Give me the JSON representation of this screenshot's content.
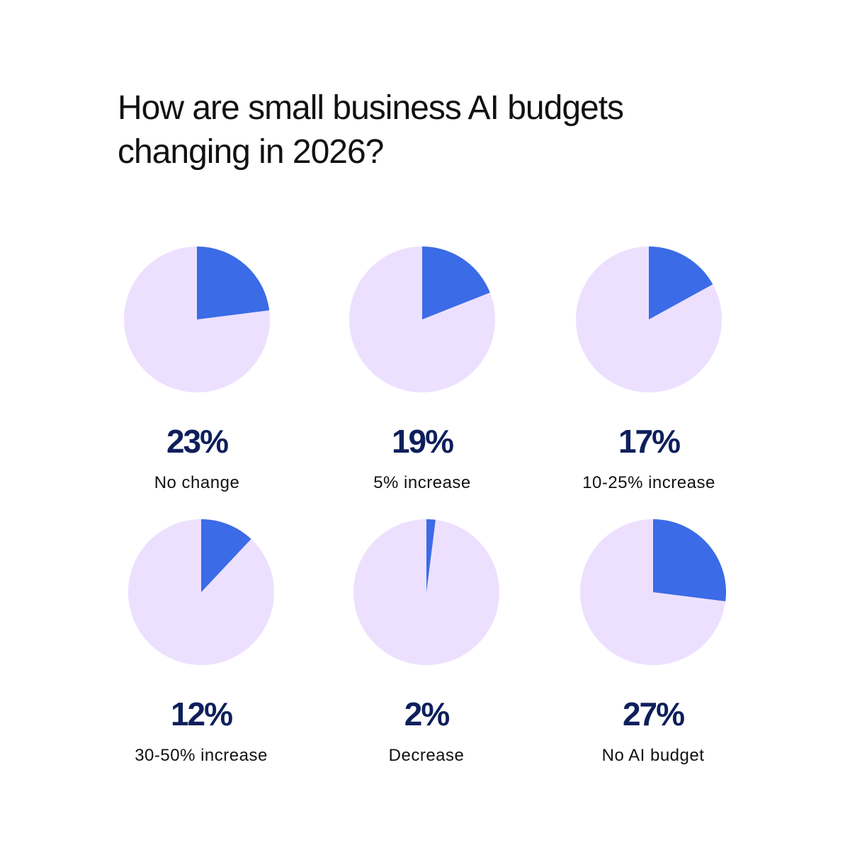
{
  "title": "How are small business AI budgets changing in 2026?",
  "chart_data": [
    {
      "type": "pie",
      "categories": [
        "No change"
      ],
      "values": [
        23
      ],
      "value_labels": [
        "23%"
      ],
      "color": "#3b6be6",
      "background_color": "#ede0ff"
    },
    {
      "type": "pie",
      "categories": [
        "5% increase"
      ],
      "values": [
        19
      ],
      "value_labels": [
        "19%"
      ],
      "color": "#3b6be6",
      "background_color": "#ede0ff"
    },
    {
      "type": "pie",
      "categories": [
        "10-25% increase"
      ],
      "values": [
        17
      ],
      "value_labels": [
        "17%"
      ],
      "color": "#3b6be6",
      "background_color": "#ede0ff"
    },
    {
      "type": "pie",
      "categories": [
        "30-50% increase"
      ],
      "values": [
        12
      ],
      "value_labels": [
        "12%"
      ],
      "color": "#3b6be6",
      "background_color": "#ede0ff"
    },
    {
      "type": "pie",
      "categories": [
        "Decrease"
      ],
      "values": [
        2
      ],
      "value_labels": [
        "2%"
      ],
      "color": "#3b6be6",
      "background_color": "#ede0ff"
    },
    {
      "type": "pie",
      "categories": [
        "No AI budget"
      ],
      "values": [
        27
      ],
      "value_labels": [
        "27%"
      ],
      "color": "#3b6be6",
      "background_color": "#ede0ff"
    }
  ]
}
